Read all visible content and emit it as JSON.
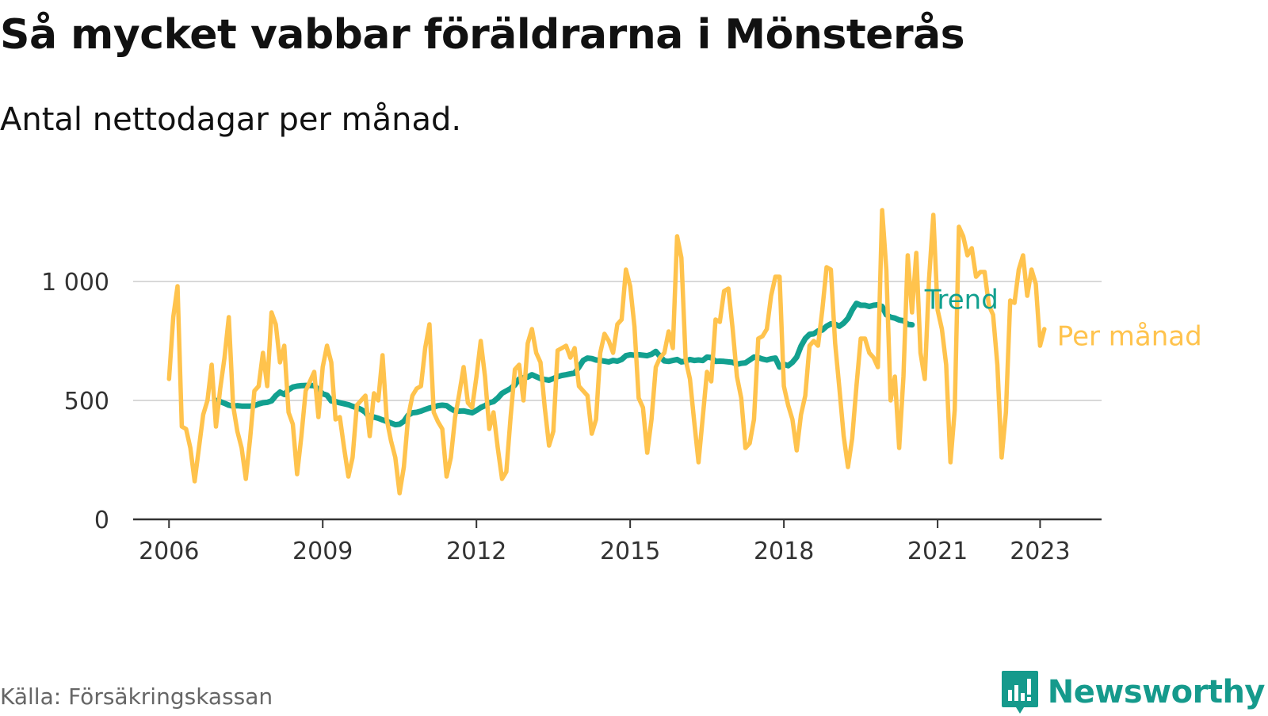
{
  "header": {
    "title": "Så mycket vabbar föräldrarna i Mönsterås",
    "subtitle": "Antal nettodagar per månad."
  },
  "footer": {
    "source": "Källa: Försäkringskassan",
    "brand": "Newsworthy"
  },
  "colors": {
    "monthly": "#ffc34d",
    "trend": "#12a08f",
    "grid": "#d9d9d9",
    "axis": "#333333",
    "brand": "#159a8c"
  },
  "chart_data": {
    "type": "line",
    "title": "Så mycket vabbar föräldrarna i Mönsterås",
    "subtitle": "Antal nettodagar per månad.",
    "x_ticks": [
      2006,
      2009,
      2012,
      2015,
      2018,
      2021,
      2023
    ],
    "x_tick_labels": [
      "2006",
      "2009",
      "2012",
      "2015",
      "2018",
      "2021",
      "2023"
    ],
    "y_ticks": [
      0,
      500,
      1000
    ],
    "y_tick_labels": [
      "0",
      "500",
      "1 000"
    ],
    "ylim": [
      0,
      1400
    ],
    "xlim": [
      2005.3,
      2024.2
    ],
    "grid": "horizontal",
    "legend": "right of line ends",
    "series": [
      {
        "name": "Per månad",
        "color": "#ffc34d",
        "start": "2006-01",
        "values": [
          590,
          850,
          980,
          390,
          380,
          300,
          160,
          300,
          440,
          500,
          650,
          390,
          550,
          680,
          850,
          480,
          370,
          300,
          170,
          340,
          540,
          560,
          700,
          560,
          870,
          820,
          660,
          730,
          450,
          400,
          190,
          350,
          540,
          580,
          620,
          430,
          640,
          730,
          660,
          420,
          430,
          300,
          180,
          260,
          480,
          500,
          520,
          350,
          530,
          500,
          690,
          420,
          330,
          260,
          110,
          220,
          430,
          520,
          550,
          560,
          720,
          820,
          450,
          410,
          380,
          180,
          260,
          430,
          530,
          640,
          490,
          470,
          600,
          750,
          600,
          380,
          450,
          300,
          170,
          200,
          430,
          630,
          650,
          500,
          740,
          800,
          700,
          660,
          470,
          310,
          370,
          710,
          720,
          730,
          680,
          720,
          560,
          540,
          520,
          360,
          420,
          700,
          780,
          750,
          700,
          820,
          840,
          1050,
          980,
          810,
          510,
          470,
          280,
          420,
          640,
          680,
          700,
          790,
          720,
          1190,
          1100,
          670,
          590,
          410,
          240,
          430,
          620,
          580,
          840,
          830,
          960,
          970,
          800,
          600,
          510,
          300,
          320,
          420,
          760,
          770,
          800,
          940,
          1020,
          1020,
          560,
          480,
          420,
          290,
          440,
          520,
          730,
          750,
          730,
          880,
          1060,
          1050,
          740,
          550,
          350,
          220,
          340,
          560,
          760,
          760,
          700,
          680,
          640,
          1300,
          1050,
          500,
          600,
          300,
          600,
          1110,
          870,
          1120,
          700,
          590,
          1010,
          1280,
          880,
          800,
          650,
          240,
          460,
          1230,
          1190,
          1110,
          1140,
          1020,
          1040,
          1040,
          900,
          860,
          650,
          260,
          450,
          920,
          910,
          1050,
          1110,
          940,
          1050,
          990,
          730,
          800
        ]
      },
      {
        "name": "Trend",
        "color": "#12a08f",
        "start": "2006-12",
        "values": [
          500,
          495,
          488,
          480,
          476,
          478,
          476,
          476,
          476,
          478,
          485,
          490,
          492,
          498,
          520,
          535,
          525,
          545,
          556,
          560,
          562,
          563,
          563,
          562,
          545,
          528,
          522,
          498,
          495,
          490,
          486,
          482,
          475,
          470,
          462,
          450,
          428,
          430,
          425,
          418,
          412,
          405,
          398,
          400,
          412,
          438,
          448,
          450,
          455,
          462,
          468,
          472,
          478,
          480,
          478,
          465,
          455,
          455,
          456,
          452,
          448,
          458,
          470,
          478,
          490,
          495,
          510,
          530,
          540,
          550,
          565,
          590,
          595,
          598,
          608,
          600,
          592,
          588,
          585,
          592,
          600,
          605,
          608,
          612,
          615,
          640,
          668,
          678,
          676,
          670,
          668,
          665,
          662,
          668,
          665,
          672,
          688,
          692,
          690,
          692,
          690,
          688,
          694,
          706,
          685,
          666,
          664,
          668,
          672,
          662,
          665,
          672,
          668,
          670,
          668,
          682,
          680,
          664,
          665,
          664,
          662,
          660,
          652,
          656,
          658,
          670,
          682,
          680,
          674,
          670,
          675,
          678,
          640,
          652,
          646,
          660,
          682,
          728,
          760,
          778,
          780,
          792,
          796,
          812,
          822,
          820,
          812,
          825,
          845,
          880,
          908,
          900,
          900,
          895,
          900,
          902,
          895,
          860,
          850,
          846,
          838,
          835,
          820,
          818
        ]
      }
    ]
  }
}
